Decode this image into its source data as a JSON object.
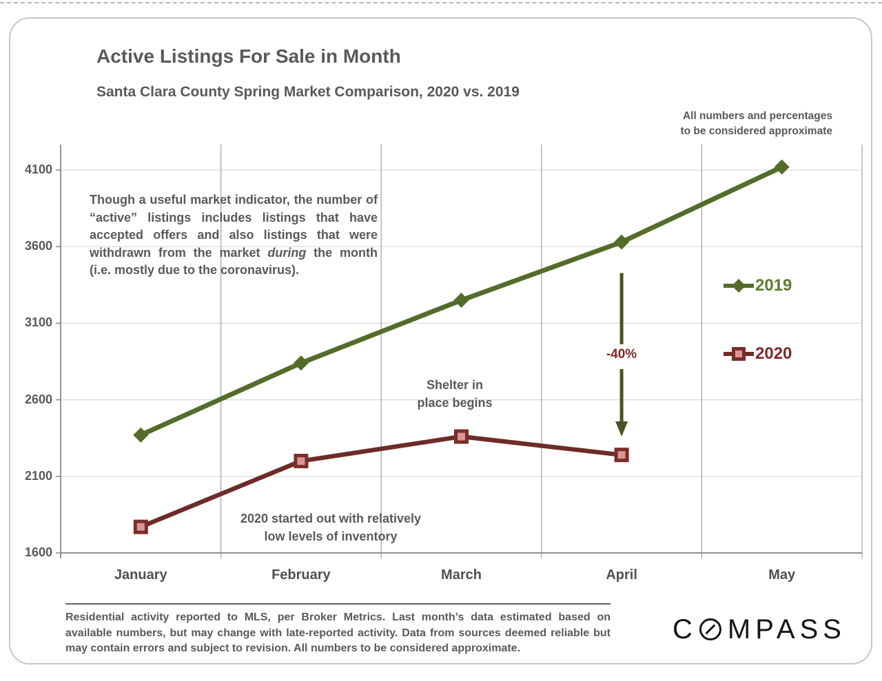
{
  "header": {
    "title": "Active Listings For Sale in Month",
    "subtitle": "Santa Clara County Spring Market Comparison, 2020 vs. 2019",
    "disclaimer": "All numbers and percentages\nto be considered approximate"
  },
  "chart_data": {
    "type": "line",
    "title": "Active Listings For Sale in Month",
    "subtitle": "Santa Clara County Spring Market Comparison, 2020 vs. 2019",
    "categories": [
      "January",
      "February",
      "March",
      "April",
      "May"
    ],
    "series": [
      {
        "name": "2019",
        "marker": "diamond",
        "color": "#546c2a",
        "text_color": "#5d7a2f",
        "values": [
          2370,
          2840,
          3250,
          3630,
          4120
        ]
      },
      {
        "name": "2020",
        "marker": "square",
        "color": "#6e2b29",
        "marker_fill": "#d99694",
        "marker_stroke": "#7b2d2a",
        "text_color": "#7e2926",
        "values": [
          1770,
          2200,
          2360,
          2240,
          null
        ]
      }
    ],
    "xlabel": "",
    "ylabel": "",
    "yticks": [
      1600,
      2100,
      2600,
      3100,
      3600,
      4100
    ],
    "ylim": [
      1600,
      4270
    ],
    "grid": "horizontal light gray at y ticks; vertical medium gray at category boundaries",
    "legend_position": "right-middle",
    "annotations": [
      {
        "id": "drop-arrow",
        "category": "April",
        "from_series": "2019",
        "to_series": "2020",
        "label": "-40%"
      }
    ]
  },
  "annotations": {
    "indicator_part1": "Though a useful market indicator, the number of “active” listings includes listings that have accepted offers and also listings that were withdrawn from the market ",
    "indicator_italic": "during",
    "indicator_part2": " the month (i.e. mostly due to the coronavirus).",
    "shelter_note": "Shelter in\nplace  begins",
    "inventory_note": "2020 started out with relatively\nlow levels of inventory",
    "drop_label": "-40%"
  },
  "footer": {
    "disclaimer": "Residential activity reported to MLS, per Broker Metrics. Last month’s data estimated based on available numbers, but may change with late-reported activity. Data from sources deemed reliable but may contain errors and subject to revision. All numbers to be considered approximate.",
    "brand": "COMPASS",
    "brand_parts": {
      "before_o": "C",
      "after_o": "MPASS"
    }
  },
  "colors": {
    "text_gray": "#595959",
    "green_2019": "#546c2a",
    "red_2020": "#6e2b29",
    "red_marker_fill": "#d99694",
    "arrow_green": "#4b5226",
    "grid_horizontal": "#d9d9d9",
    "grid_vertical": "#a1a1a1",
    "axis_gray": "#898989"
  }
}
